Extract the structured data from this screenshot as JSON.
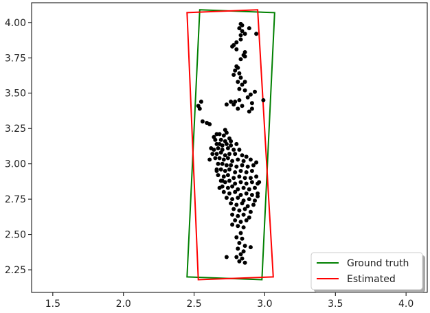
{
  "chart_data": {
    "type": "scatter",
    "title": "",
    "xlabel": "",
    "ylabel": "",
    "xlim": [
      1.35,
      4.15
    ],
    "ylim": [
      2.09,
      4.14
    ],
    "grid": false,
    "legend_placement": "lower-right",
    "x_ticks": [
      {
        "value": 1.5,
        "label": "1.5"
      },
      {
        "value": 2.0,
        "label": "2.0"
      },
      {
        "value": 2.5,
        "label": "2.5"
      },
      {
        "value": 3.0,
        "label": "3.0"
      },
      {
        "value": 3.5,
        "label": "3.5"
      },
      {
        "value": 4.0,
        "label": "4.0"
      }
    ],
    "y_ticks": [
      {
        "value": 2.25,
        "label": "2.25"
      },
      {
        "value": 2.5,
        "label": "2.50"
      },
      {
        "value": 2.75,
        "label": "2.75"
      },
      {
        "value": 3.0,
        "label": "3.00"
      },
      {
        "value": 3.25,
        "label": "3.25"
      },
      {
        "value": 3.5,
        "label": "3.50"
      },
      {
        "value": 3.75,
        "label": "3.75"
      },
      {
        "value": 4.0,
        "label": "4.00"
      }
    ],
    "series": [
      {
        "name": "Ground truth",
        "kind": "polygon",
        "color": "#008000",
        "points": [
          [
            2.54,
            4.09
          ],
          [
            3.07,
            4.07
          ],
          [
            2.98,
            2.18
          ],
          [
            2.45,
            2.2
          ]
        ]
      },
      {
        "name": "Estimated",
        "kind": "polygon",
        "color": "#ff0000",
        "points": [
          [
            2.45,
            4.07
          ],
          [
            2.95,
            4.09
          ],
          [
            3.06,
            2.2
          ],
          [
            2.53,
            2.18
          ]
        ]
      },
      {
        "name": "",
        "kind": "points",
        "color": "#000000",
        "points": [
          [
            2.83,
            3.99
          ],
          [
            2.84,
            3.98
          ],
          [
            2.82,
            3.96
          ],
          [
            2.84,
            3.94
          ],
          [
            2.83,
            3.91
          ],
          [
            2.8,
            3.86
          ],
          [
            2.83,
            3.88
          ],
          [
            2.89,
            3.96
          ],
          [
            2.86,
            3.92
          ],
          [
            2.94,
            3.92
          ],
          [
            2.78,
            3.84
          ],
          [
            2.77,
            3.83
          ],
          [
            2.8,
            3.81
          ],
          [
            2.86,
            3.79
          ],
          [
            2.85,
            3.77
          ],
          [
            2.86,
            3.76
          ],
          [
            2.83,
            3.74
          ],
          [
            2.8,
            3.69
          ],
          [
            2.81,
            3.68
          ],
          [
            2.79,
            3.66
          ],
          [
            2.82,
            3.64
          ],
          [
            2.83,
            3.61
          ],
          [
            2.78,
            3.63
          ],
          [
            2.81,
            3.58
          ],
          [
            2.84,
            3.56
          ],
          [
            2.86,
            3.58
          ],
          [
            2.82,
            3.53
          ],
          [
            2.86,
            3.52
          ],
          [
            2.9,
            3.49
          ],
          [
            2.93,
            3.51
          ],
          [
            2.88,
            3.47
          ],
          [
            2.82,
            3.45
          ],
          [
            2.79,
            3.44
          ],
          [
            2.76,
            3.44
          ],
          [
            2.73,
            3.42
          ],
          [
            2.78,
            3.42
          ],
          [
            2.81,
            3.39
          ],
          [
            2.84,
            3.41
          ],
          [
            2.91,
            3.43
          ],
          [
            2.91,
            3.39
          ],
          [
            2.89,
            3.37
          ],
          [
            2.99,
            3.45
          ],
          [
            2.55,
            3.44
          ],
          [
            2.53,
            3.41
          ],
          [
            2.54,
            3.39
          ],
          [
            2.59,
            3.29
          ],
          [
            2.61,
            3.28
          ],
          [
            2.56,
            3.3
          ],
          [
            2.66,
            3.21
          ],
          [
            2.64,
            3.19
          ],
          [
            2.65,
            3.17
          ],
          [
            2.68,
            3.21
          ],
          [
            2.71,
            3.2
          ],
          [
            2.73,
            3.22
          ],
          [
            2.69,
            3.17
          ],
          [
            2.72,
            3.16
          ],
          [
            2.75,
            3.18
          ],
          [
            2.76,
            3.16
          ],
          [
            2.66,
            3.14
          ],
          [
            2.68,
            3.14
          ],
          [
            2.7,
            3.13
          ],
          [
            2.73,
            3.14
          ],
          [
            2.76,
            3.13
          ],
          [
            2.8,
            3.14
          ],
          [
            2.62,
            3.11
          ],
          [
            2.64,
            3.1
          ],
          [
            2.67,
            3.11
          ],
          [
            2.7,
            3.1
          ],
          [
            2.74,
            3.11
          ],
          [
            2.78,
            3.1
          ],
          [
            2.82,
            3.1
          ],
          [
            2.63,
            3.07
          ],
          [
            2.66,
            3.07
          ],
          [
            2.69,
            3.08
          ],
          [
            2.72,
            3.06
          ],
          [
            2.75,
            3.07
          ],
          [
            2.79,
            3.07
          ],
          [
            2.84,
            3.06
          ],
          [
            2.87,
            3.05
          ],
          [
            2.65,
            3.04
          ],
          [
            2.68,
            3.04
          ],
          [
            2.71,
            3.03
          ],
          [
            2.74,
            3.04
          ],
          [
            2.77,
            3.02
          ],
          [
            2.81,
            3.03
          ],
          [
            2.85,
            3.02
          ],
          [
            2.9,
            3.03
          ],
          [
            2.67,
            3.0
          ],
          [
            2.7,
            3.0
          ],
          [
            2.73,
            2.99
          ],
          [
            2.76,
            2.99
          ],
          [
            2.8,
            2.98
          ],
          [
            2.84,
            2.99
          ],
          [
            2.88,
            2.98
          ],
          [
            2.92,
            2.99
          ],
          [
            2.66,
            2.96
          ],
          [
            2.69,
            2.96
          ],
          [
            2.72,
            2.95
          ],
          [
            2.75,
            2.96
          ],
          [
            2.79,
            2.94
          ],
          [
            2.83,
            2.95
          ],
          [
            2.87,
            2.94
          ],
          [
            2.91,
            2.95
          ],
          [
            2.67,
            2.92
          ],
          [
            2.71,
            2.91
          ],
          [
            2.74,
            2.92
          ],
          [
            2.78,
            2.9
          ],
          [
            2.82,
            2.91
          ],
          [
            2.86,
            2.9
          ],
          [
            2.9,
            2.9
          ],
          [
            2.94,
            2.91
          ],
          [
            2.69,
            2.88
          ],
          [
            2.72,
            2.87
          ],
          [
            2.75,
            2.88
          ],
          [
            2.79,
            2.86
          ],
          [
            2.83,
            2.87
          ],
          [
            2.87,
            2.86
          ],
          [
            2.91,
            2.87
          ],
          [
            2.95,
            2.86
          ],
          [
            2.7,
            2.84
          ],
          [
            2.74,
            2.83
          ],
          [
            2.77,
            2.84
          ],
          [
            2.81,
            2.82
          ],
          [
            2.85,
            2.83
          ],
          [
            2.89,
            2.82
          ],
          [
            2.93,
            2.83
          ],
          [
            2.71,
            2.8
          ],
          [
            2.75,
            2.79
          ],
          [
            2.79,
            2.8
          ],
          [
            2.83,
            2.78
          ],
          [
            2.87,
            2.79
          ],
          [
            2.91,
            2.78
          ],
          [
            2.95,
            2.79
          ],
          [
            2.73,
            2.76
          ],
          [
            2.77,
            2.75
          ],
          [
            2.81,
            2.76
          ],
          [
            2.85,
            2.74
          ],
          [
            2.89,
            2.75
          ],
          [
            2.93,
            2.74
          ],
          [
            2.76,
            2.72
          ],
          [
            2.8,
            2.71
          ],
          [
            2.84,
            2.72
          ],
          [
            2.88,
            2.7
          ],
          [
            2.92,
            2.71
          ],
          [
            2.78,
            2.68
          ],
          [
            2.82,
            2.67
          ],
          [
            2.86,
            2.68
          ],
          [
            2.9,
            2.66
          ],
          [
            2.77,
            2.64
          ],
          [
            2.81,
            2.63
          ],
          [
            2.85,
            2.64
          ],
          [
            2.89,
            2.62
          ],
          [
            2.79,
            2.6
          ],
          [
            2.83,
            2.59
          ],
          [
            2.87,
            2.6
          ],
          [
            2.81,
            2.56
          ],
          [
            2.85,
            2.55
          ],
          [
            2.83,
            2.51
          ],
          [
            2.8,
            2.48
          ],
          [
            2.84,
            2.47
          ],
          [
            2.82,
            2.44
          ],
          [
            2.86,
            2.42
          ],
          [
            2.81,
            2.4
          ],
          [
            2.85,
            2.38
          ],
          [
            2.83,
            2.36
          ],
          [
            2.8,
            2.34
          ],
          [
            2.84,
            2.33
          ],
          [
            2.82,
            2.31
          ],
          [
            2.86,
            2.3
          ],
          [
            2.73,
            2.34
          ],
          [
            2.9,
            2.41
          ],
          [
            2.77,
            2.57
          ],
          [
            2.66,
            2.95
          ],
          [
            2.61,
            3.03
          ],
          [
            2.94,
            3.01
          ],
          [
            2.96,
            2.87
          ],
          [
            2.95,
            2.77
          ],
          [
            2.68,
            2.83
          ],
          [
            2.7,
            2.88
          ],
          [
            2.72,
            3.24
          ]
        ]
      }
    ]
  }
}
